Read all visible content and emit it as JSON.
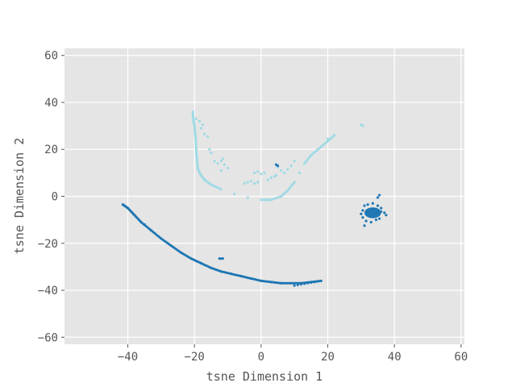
{
  "chart_data": {
    "type": "scatter",
    "title": "",
    "xlabel": "tsne Dimension 1",
    "ylabel": "tsne Dimension 2",
    "xlim": [
      -59,
      61
    ],
    "ylim": [
      -63,
      63
    ],
    "xticks": [
      -40,
      -20,
      0,
      20,
      40,
      60
    ],
    "yticks": [
      -60,
      -40,
      -20,
      0,
      20,
      40,
      60
    ],
    "xtick_labels": [
      "−40",
      "−20",
      "0",
      "20",
      "40",
      "60"
    ],
    "ytick_labels": [
      "−60",
      "−40",
      "−20",
      "0",
      "20",
      "40",
      "60"
    ],
    "grid": true,
    "background": "#e5e5e5",
    "series": [
      {
        "color": "#9edae5",
        "points": [
          [
            -20.5,
            36
          ],
          [
            -20.4,
            34
          ],
          [
            -20.3,
            32
          ],
          [
            -20.0,
            30
          ],
          [
            -19.8,
            27
          ],
          [
            -19.6,
            24
          ],
          [
            -19.5,
            21
          ],
          [
            -19.4,
            18
          ],
          [
            -19.2,
            15
          ],
          [
            -19.0,
            12
          ],
          [
            -18.3,
            9.5
          ],
          [
            -17.0,
            7
          ],
          [
            -15.0,
            5
          ],
          [
            -12.0,
            3
          ],
          [
            -8.0,
            1
          ],
          [
            -4.0,
            -0.5
          ],
          [
            0.0,
            -1.5
          ],
          [
            3.0,
            -1.5
          ],
          [
            6.0,
            0
          ],
          [
            8.0,
            2.5
          ],
          [
            10.0,
            6
          ],
          [
            11.5,
            10
          ],
          [
            13.0,
            14
          ],
          [
            15.0,
            17.5
          ],
          [
            17.5,
            20.5
          ],
          [
            20.0,
            23.5
          ],
          [
            22.0,
            26
          ],
          [
            -19.5,
            33
          ],
          [
            -18.5,
            32
          ],
          [
            -17.5,
            30.5
          ],
          [
            -18.0,
            29
          ],
          [
            -17.0,
            26.5
          ],
          [
            -16.0,
            25.5
          ],
          [
            -15.5,
            20
          ],
          [
            -15.0,
            18.5
          ],
          [
            -14.0,
            15
          ],
          [
            -13.0,
            14
          ],
          [
            -12.0,
            15
          ],
          [
            -11.0,
            13.5
          ],
          [
            -10.0,
            12
          ],
          [
            -12.0,
            11
          ],
          [
            -11.5,
            16
          ],
          [
            -5.0,
            5.5
          ],
          [
            -4.0,
            6
          ],
          [
            -3.0,
            6.5
          ],
          [
            -2.0,
            5.5
          ],
          [
            -1.0,
            6
          ],
          [
            -2.0,
            10
          ],
          [
            -1.0,
            10.5
          ],
          [
            0.0,
            9.5
          ],
          [
            1.0,
            10
          ],
          [
            2.0,
            7
          ],
          [
            3.0,
            8
          ],
          [
            4.0,
            8.5
          ],
          [
            4.5,
            9
          ],
          [
            5.0,
            12.5
          ],
          [
            6.0,
            11
          ],
          [
            7.0,
            10
          ],
          [
            8.0,
            11.5
          ],
          [
            9.0,
            13
          ],
          [
            10.0,
            15
          ],
          [
            20.0,
            24.5
          ],
          [
            30.0,
            30.5
          ],
          [
            30.5,
            30
          ]
        ]
      },
      {
        "color": "#1f77b4",
        "points": [
          [
            -41.5,
            -3.5
          ],
          [
            -40.0,
            -5
          ],
          [
            -38.0,
            -8
          ],
          [
            -36.0,
            -11
          ],
          [
            -33.0,
            -14.5
          ],
          [
            -30.0,
            -18
          ],
          [
            -27.0,
            -21
          ],
          [
            -24.0,
            -24
          ],
          [
            -21.0,
            -26.5
          ],
          [
            -18.0,
            -28.5
          ],
          [
            -15.0,
            -30.5
          ],
          [
            -12.0,
            -32
          ],
          [
            -9.0,
            -33
          ],
          [
            -6.0,
            -34
          ],
          [
            -3.0,
            -35
          ],
          [
            0.0,
            -36
          ],
          [
            3.0,
            -36.5
          ],
          [
            6.0,
            -37
          ],
          [
            9.0,
            -37
          ],
          [
            12.0,
            -37
          ],
          [
            15.0,
            -36.5
          ],
          [
            18.0,
            -36
          ],
          [
            10.0,
            -38
          ],
          [
            -35.0,
            -12
          ],
          [
            -12.5,
            -26.5
          ],
          [
            -11.5,
            -26.5
          ],
          [
            -12.0,
            -26.5
          ],
          [
            4.5,
            13.5
          ],
          [
            5.0,
            13
          ],
          [
            35.5,
            0.5
          ],
          [
            35.0,
            -0.5
          ],
          [
            31.0,
            -4
          ],
          [
            32.0,
            -3.5
          ],
          [
            33.5,
            -3
          ],
          [
            35.0,
            -4
          ],
          [
            36.0,
            -5
          ],
          [
            30.5,
            -6
          ],
          [
            30.0,
            -7.5
          ],
          [
            30.5,
            -9
          ],
          [
            31.5,
            -10.5
          ],
          [
            33.0,
            -11
          ],
          [
            34.5,
            -10
          ],
          [
            35.5,
            -9.5
          ],
          [
            37.0,
            -7
          ],
          [
            37.5,
            -8
          ],
          [
            36.0,
            -6.5
          ],
          [
            31.0,
            -12.5
          ]
        ]
      }
    ],
    "clusters": [
      {
        "color": "#1f77b4",
        "cx": 33.5,
        "cy": -7,
        "rx": 2.5,
        "ry": 2.3
      }
    ]
  }
}
